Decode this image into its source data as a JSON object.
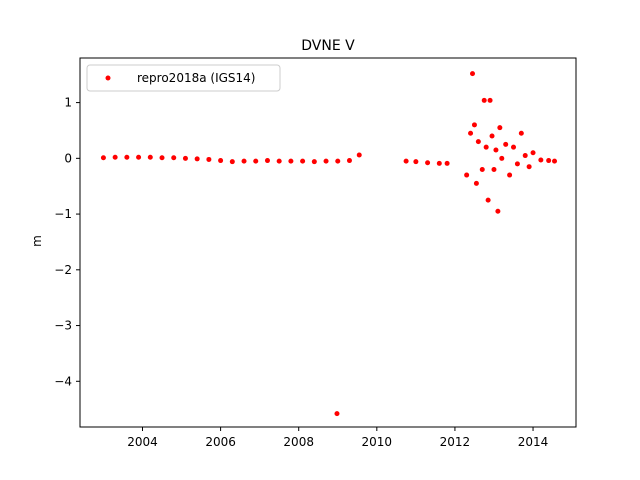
{
  "chart_data": {
    "type": "scatter",
    "title": "DVNE V",
    "xlabel": "",
    "ylabel": "m",
    "xlim": [
      2002.4,
      2015.1
    ],
    "ylim": [
      -4.82,
      1.8
    ],
    "xticks": [
      2004,
      2006,
      2008,
      2010,
      2012,
      2014
    ],
    "xtick_labels": [
      "2004",
      "2006",
      "2008",
      "2010",
      "2012",
      "2014"
    ],
    "yticks": [
      1,
      0,
      -1,
      -2,
      -3,
      -4
    ],
    "ytick_labels": [
      "1",
      "0",
      "−1",
      "−2",
      "−3",
      "−4"
    ],
    "grid": false,
    "legend_position": "top-left",
    "series": [
      {
        "name": "repro2018a (IGS14)",
        "color": "#ff0000",
        "x": [
          2003.0,
          2003.3,
          2003.6,
          2003.9,
          2004.2,
          2004.5,
          2004.8,
          2005.1,
          2005.4,
          2005.7,
          2006.0,
          2006.3,
          2006.6,
          2006.9,
          2007.2,
          2007.5,
          2007.8,
          2008.1,
          2008.4,
          2008.7,
          2009.0,
          2009.3,
          2009.55,
          2008.98,
          2010.75,
          2011.0,
          2011.3,
          2011.6,
          2011.8,
          2012.3,
          2012.4,
          2012.45,
          2012.5,
          2012.55,
          2012.6,
          2012.7,
          2012.75,
          2012.8,
          2012.85,
          2012.9,
          2012.95,
          2013.0,
          2013.05,
          2013.1,
          2013.15,
          2013.2,
          2013.3,
          2013.4,
          2013.5,
          2013.6,
          2013.7,
          2013.8,
          2013.9,
          2014.0,
          2014.2,
          2014.4,
          2014.55
        ],
        "y": [
          0.01,
          0.02,
          0.02,
          0.02,
          0.02,
          0.01,
          0.01,
          0.0,
          -0.01,
          -0.02,
          -0.04,
          -0.06,
          -0.05,
          -0.05,
          -0.04,
          -0.05,
          -0.05,
          -0.05,
          -0.06,
          -0.05,
          -0.05,
          -0.04,
          0.06,
          -4.58,
          -0.05,
          -0.06,
          -0.08,
          -0.09,
          -0.09,
          -0.3,
          0.45,
          1.52,
          0.6,
          -0.45,
          0.3,
          -0.2,
          1.04,
          0.2,
          -0.75,
          1.04,
          0.4,
          -0.2,
          0.15,
          -0.95,
          0.55,
          0.0,
          0.25,
          -0.3,
          0.2,
          -0.1,
          0.45,
          0.05,
          -0.15,
          0.1,
          -0.03,
          -0.04,
          -0.05
        ]
      }
    ]
  }
}
